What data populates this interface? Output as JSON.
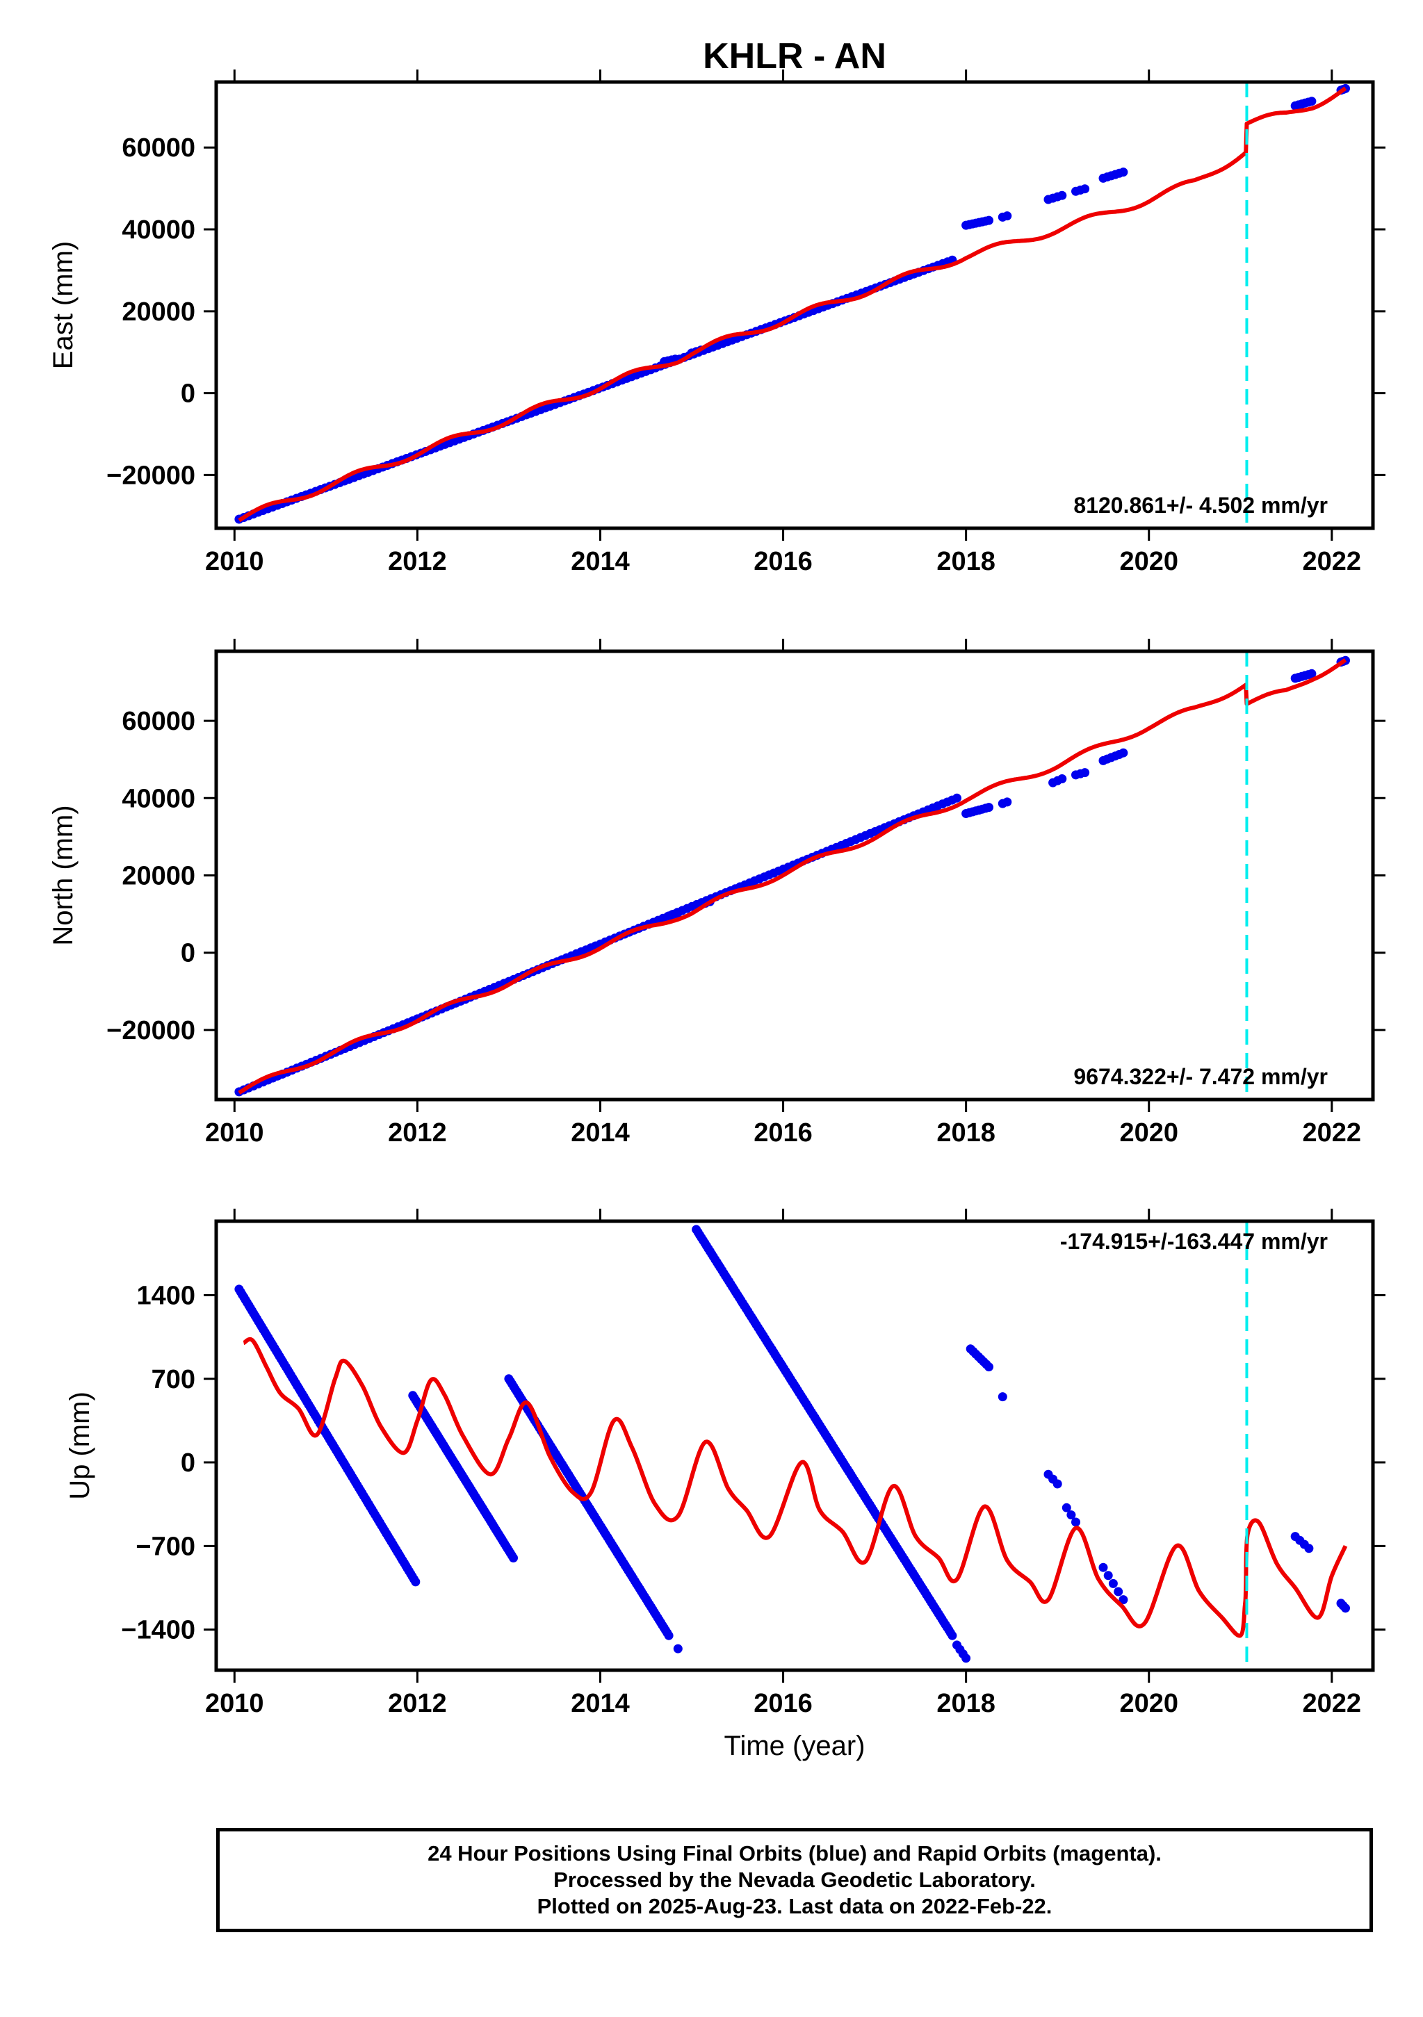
{
  "title": "KHLR - AN",
  "colors": {
    "final_orbits": "#0000ee",
    "model": "#ee0000",
    "step": "#00eeee",
    "frame": "#000000"
  },
  "footer": {
    "line1": "24 Hour Positions Using Final Orbits (blue) and Rapid Orbits (magenta).",
    "line2": "Processed by the Nevada Geodetic Laboratory.",
    "line3": "Plotted on 2025-Aug-23. Last data on 2022-Feb-22."
  },
  "chart_data": [
    {
      "type": "scatter",
      "ylabel": "East (mm)",
      "xlim": [
        2009.8,
        2022.45
      ],
      "ylim": [
        -33000,
        76000
      ],
      "xticks": [
        2010,
        2012,
        2014,
        2016,
        2018,
        2020,
        2022
      ],
      "xtick_labels": [
        "2010",
        "2012",
        "2014",
        "2016",
        "2018",
        "2020",
        "2022"
      ],
      "yticks": [
        -20000,
        0,
        20000,
        40000,
        60000
      ],
      "ytick_labels": [
        "−20000",
        "0",
        "20000",
        "40000",
        "60000"
      ],
      "rate": "8120.861+/- 4.502 mm/yr",
      "step_epoch": 2021.07,
      "series": [
        {
          "kind": "points",
          "segments": [
            {
              "x": [
                2010.05,
                2017.85
              ],
              "y": [
                -30800,
                32500
              ],
              "n": 150
            },
            {
              "x": [
                2014.7,
                2014.82
              ],
              "y": [
                7700,
                8300
              ],
              "n": 4
            },
            {
              "x": [
                2015.0,
                2015.1
              ],
              "y": [
                9800,
                10500
              ],
              "n": 3
            },
            {
              "x": [
                2018.0,
                2018.25
              ],
              "y": [
                41000,
                42200
              ],
              "n": 8
            },
            {
              "x": [
                2018.4,
                2018.45
              ],
              "y": [
                43000,
                43300
              ],
              "n": 2
            },
            {
              "x": [
                2018.9,
                2019.05
              ],
              "y": [
                47300,
                48300
              ],
              "n": 4
            },
            {
              "x": [
                2019.2,
                2019.3
              ],
              "y": [
                49300,
                49900
              ],
              "n": 3
            },
            {
              "x": [
                2019.5,
                2019.72
              ],
              "y": [
                52500,
                54000
              ],
              "n": 6
            },
            {
              "x": [
                2021.6,
                2021.78
              ],
              "y": [
                70200,
                71300
              ],
              "n": 6
            },
            {
              "x": [
                2022.1,
                2022.15
              ],
              "y": [
                74000,
                74400
              ],
              "n": 3
            }
          ]
        },
        {
          "kind": "model",
          "points": [
            [
              2010.05,
              -30800
            ],
            [
              2011.0,
              -22800
            ],
            [
              2012.0,
              -14600
            ],
            [
              2013.0,
              -6500
            ],
            [
              2014.0,
              1600
            ],
            [
              2014.85,
              8400
            ],
            [
              2015.0,
              10000
            ],
            [
              2016.0,
              17700
            ],
            [
              2017.0,
              25600
            ],
            [
              2018.0,
              33500
            ],
            [
              2018.5,
              36500
            ],
            [
              2019.0,
              40000
            ],
            [
              2019.5,
              43500
            ],
            [
              2020.0,
              47300
            ],
            [
              2020.5,
              51500
            ],
            [
              2021.06,
              59000
            ],
            [
              2021.07,
              66000
            ],
            [
              2021.5,
              68000
            ],
            [
              2021.8,
              70500
            ],
            [
              2022.15,
              74200
            ]
          ],
          "wiggle": 900
        }
      ]
    },
    {
      "type": "scatter",
      "ylabel": "North (mm)",
      "xlim": [
        2009.8,
        2022.45
      ],
      "ylim": [
        -38000,
        78000
      ],
      "xticks": [
        2010,
        2012,
        2014,
        2016,
        2018,
        2020,
        2022
      ],
      "xtick_labels": [
        "2010",
        "2012",
        "2014",
        "2016",
        "2018",
        "2020",
        "2022"
      ],
      "yticks": [
        -20000,
        0,
        20000,
        40000,
        60000
      ],
      "ytick_labels": [
        "−20000",
        "0",
        "20000",
        "40000",
        "60000"
      ],
      "rate": "9674.322+/- 7.472 mm/yr",
      "step_epoch": 2021.07,
      "series": [
        {
          "kind": "points",
          "segments": [
            {
              "x": [
                2010.05,
                2017.9
              ],
              "y": [
                -36000,
                40000
              ],
              "n": 150
            },
            {
              "x": [
                2014.75,
                2014.85
              ],
              "y": [
                9500,
                10300
              ],
              "n": 4
            },
            {
              "x": [
                2015.05,
                2015.2
              ],
              "y": [
                12000,
                13200
              ],
              "n": 4
            },
            {
              "x": [
                2018.0,
                2018.25
              ],
              "y": [
                36000,
                37600
              ],
              "n": 8
            },
            {
              "x": [
                2018.4,
                2018.45
              ],
              "y": [
                38600,
                39000
              ],
              "n": 2
            },
            {
              "x": [
                2018.95,
                2019.05
              ],
              "y": [
                44000,
                45000
              ],
              "n": 3
            },
            {
              "x": [
                2019.2,
                2019.3
              ],
              "y": [
                46000,
                46600
              ],
              "n": 3
            },
            {
              "x": [
                2019.5,
                2019.72
              ],
              "y": [
                49700,
                51700
              ],
              "n": 6
            },
            {
              "x": [
                2021.6,
                2021.78
              ],
              "y": [
                71000,
                72200
              ],
              "n": 6
            },
            {
              "x": [
                2022.1,
                2022.15
              ],
              "y": [
                75200,
                75600
              ],
              "n": 3
            }
          ]
        },
        {
          "kind": "model",
          "points": [
            [
              2010.05,
              -36000
            ],
            [
              2011.0,
              -26500
            ],
            [
              2012.0,
              -17200
            ],
            [
              2013.0,
              -7800
            ],
            [
              2014.0,
              1600
            ],
            [
              2014.8,
              9000
            ],
            [
              2015.0,
              10600
            ],
            [
              2016.0,
              20500
            ],
            [
              2017.0,
              30000
            ],
            [
              2018.0,
              39800
            ],
            [
              2018.5,
              44200
            ],
            [
              2019.0,
              48500
            ],
            [
              2019.5,
              53500
            ],
            [
              2020.0,
              58500
            ],
            [
              2020.5,
              63000
            ],
            [
              2021.06,
              69500
            ],
            [
              2021.07,
              64500
            ],
            [
              2021.5,
              67500
            ],
            [
              2021.8,
              71500
            ],
            [
              2022.15,
              75500
            ]
          ],
          "wiggle": 800
        }
      ]
    },
    {
      "type": "scatter",
      "ylabel": "Up (mm)",
      "xlabel": "Time (year)",
      "xlim": [
        2009.8,
        2022.45
      ],
      "ylim": [
        -1740,
        2020
      ],
      "xticks": [
        2010,
        2012,
        2014,
        2016,
        2018,
        2020,
        2022
      ],
      "xtick_labels": [
        "2010",
        "2012",
        "2014",
        "2016",
        "2018",
        "2020",
        "2022"
      ],
      "yticks": [
        -1400,
        -700,
        0,
        700,
        1400
      ],
      "ytick_labels": [
        "−1400",
        "−700",
        "0",
        "700",
        "1400"
      ],
      "rate": "-174.915+/-163.447 mm/yr",
      "step_epoch": 2021.07,
      "series": [
        {
          "kind": "points",
          "segments": [
            {
              "x": [
                2010.05,
                2011.98
              ],
              "y": [
                1450,
                -1000
              ],
              "n": 110
            },
            {
              "x": [
                2011.95,
                2013.05
              ],
              "y": [
                560,
                -800
              ],
              "n": 70
            },
            {
              "x": [
                2013.0,
                2014.75
              ],
              "y": [
                700,
                -1450
              ],
              "n": 100
            },
            {
              "x": [
                2014.85,
                2014.85
              ],
              "y": [
                -1560,
                -1560
              ],
              "n": 1
            },
            {
              "x": [
                2015.05,
                2017.85
              ],
              "y": [
                1950,
                -1450
              ],
              "n": 150
            },
            {
              "x": [
                2017.9,
                2018.0
              ],
              "y": [
                -1530,
                -1640
              ],
              "n": 4
            },
            {
              "x": [
                2018.05,
                2018.25
              ],
              "y": [
                950,
                800
              ],
              "n": 8
            },
            {
              "x": [
                2018.4,
                2018.4
              ],
              "y": [
                550,
                550
              ],
              "n": 1
            },
            {
              "x": [
                2018.9,
                2019.0
              ],
              "y": [
                -100,
                -180
              ],
              "n": 3
            },
            {
              "x": [
                2019.1,
                2019.2
              ],
              "y": [
                -380,
                -500
              ],
              "n": 3
            },
            {
              "x": [
                2019.5,
                2019.72
              ],
              "y": [
                -880,
                -1150
              ],
              "n": 5
            },
            {
              "x": [
                2021.6,
                2021.75
              ],
              "y": [
                -620,
                -720
              ],
              "n": 4
            },
            {
              "x": [
                2022.1,
                2022.15
              ],
              "y": [
                -1180,
                -1220
              ],
              "n": 3
            }
          ]
        },
        {
          "kind": "model",
          "points": [
            [
              2010.1,
              1000
            ],
            [
              2010.2,
              1020
            ],
            [
              2010.35,
              800
            ],
            [
              2010.5,
              580
            ],
            [
              2010.7,
              450
            ],
            [
              2010.9,
              230
            ],
            [
              2011.1,
              700
            ],
            [
              2011.2,
              850
            ],
            [
              2011.4,
              640
            ],
            [
              2011.6,
              300
            ],
            [
              2011.85,
              80
            ],
            [
              2012.0,
              350
            ],
            [
              2012.15,
              690
            ],
            [
              2012.3,
              560
            ],
            [
              2012.5,
              220
            ],
            [
              2012.8,
              -100
            ],
            [
              2013.0,
              200
            ],
            [
              2013.2,
              500
            ],
            [
              2013.45,
              50
            ],
            [
              2013.7,
              -250
            ],
            [
              2013.9,
              -250
            ],
            [
              2014.15,
              350
            ],
            [
              2014.35,
              120
            ],
            [
              2014.6,
              -350
            ],
            [
              2014.85,
              -450
            ],
            [
              2015.15,
              170
            ],
            [
              2015.4,
              -220
            ],
            [
              2015.6,
              -400
            ],
            [
              2015.85,
              -620
            ],
            [
              2016.2,
              0
            ],
            [
              2016.4,
              -400
            ],
            [
              2016.65,
              -580
            ],
            [
              2016.9,
              -830
            ],
            [
              2017.2,
              -200
            ],
            [
              2017.45,
              -620
            ],
            [
              2017.7,
              -800
            ],
            [
              2017.9,
              -980
            ],
            [
              2018.2,
              -370
            ],
            [
              2018.45,
              -820
            ],
            [
              2018.7,
              -1000
            ],
            [
              2018.9,
              -1150
            ],
            [
              2019.2,
              -550
            ],
            [
              2019.45,
              -980
            ],
            [
              2019.7,
              -1200
            ],
            [
              2019.95,
              -1350
            ],
            [
              2020.3,
              -700
            ],
            [
              2020.55,
              -1080
            ],
            [
              2020.8,
              -1300
            ],
            [
              2021.0,
              -1450
            ],
            [
              2021.05,
              -1200
            ],
            [
              2021.06,
              -1050
            ],
            [
              2021.08,
              -600
            ],
            [
              2021.2,
              -500
            ],
            [
              2021.4,
              -850
            ],
            [
              2021.6,
              -1050
            ],
            [
              2021.85,
              -1300
            ],
            [
              2022.0,
              -950
            ],
            [
              2022.15,
              -700
            ]
          ],
          "wiggle": 0
        }
      ]
    }
  ]
}
